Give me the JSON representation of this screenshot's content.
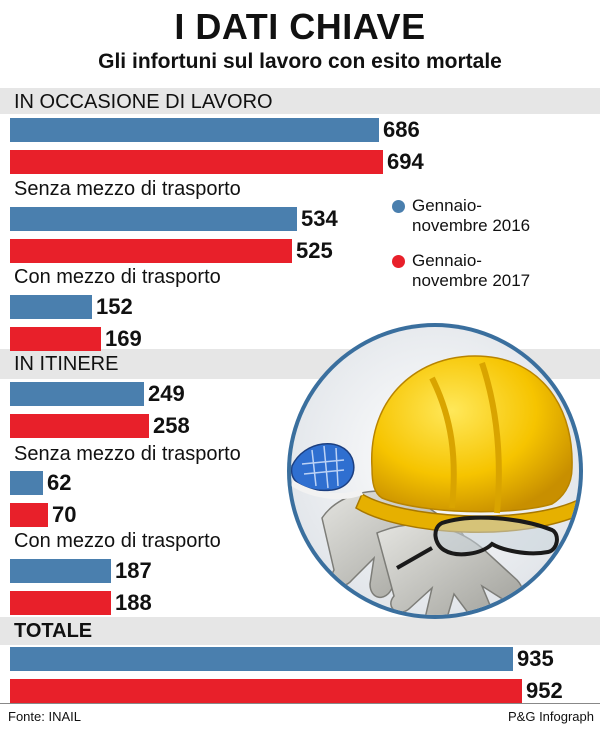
{
  "header": {
    "title": "I DATI CHIAVE",
    "subtitle": "Gli infortuni sul lavoro con esito mortale"
  },
  "chart_data": {
    "type": "bar",
    "orientation": "horizontal",
    "title": "I DATI CHIAVE",
    "subtitle": "Gli infortuni sul lavoro con esito mortale",
    "series": [
      {
        "name": "Gennaio-novembre 2016",
        "color": "#4a7fae"
      },
      {
        "name": "Gennaio-novembre 2017",
        "color": "#e8202a"
      }
    ],
    "categories": [
      "IN OCCASIONE DI LAVORO",
      "Senza mezzo di trasporto",
      "Con mezzo di trasporto",
      "IN ITINERE",
      "Senza mezzo di trasporto",
      "Con mezzo di trasporto",
      "TOTALE"
    ],
    "values_2016": [
      686,
      534,
      152,
      249,
      62,
      187,
      935
    ],
    "values_2017": [
      694,
      525,
      169,
      258,
      70,
      188,
      952
    ],
    "xlim": [
      0,
      952
    ]
  },
  "legend": {
    "items": [
      {
        "line1": "Gennaio-",
        "line2": "novembre 2016",
        "color": "#4a7fae"
      },
      {
        "line1": "Gennaio-",
        "line2": "novembre 2017",
        "color": "#e8202a"
      }
    ]
  },
  "footer": {
    "source": "Fonte: INAIL",
    "credit": "P&G Infograph"
  },
  "image": {
    "icon": "safety-equipment-icon"
  }
}
